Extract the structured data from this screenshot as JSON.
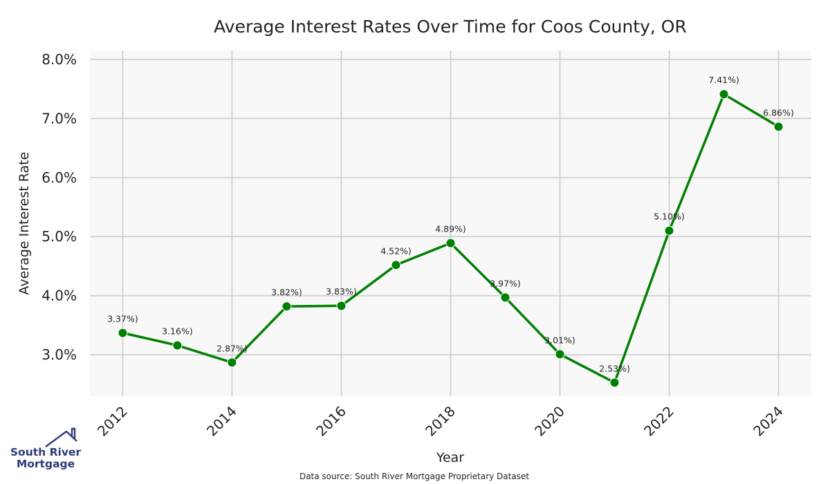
{
  "chart_data": {
    "type": "line",
    "title": "Average Interest Rates Over Time for Coos County, OR",
    "xlabel": "Year",
    "ylabel": "Average Interest Rate",
    "x": [
      2012,
      2013,
      2014,
      2015,
      2016,
      2017,
      2018,
      2019,
      2020,
      2021,
      2022,
      2023,
      2024
    ],
    "series": [
      {
        "values": [
          3.37,
          3.16,
          2.87,
          3.82,
          3.83,
          4.52,
          4.89,
          3.97,
          3.01,
          2.53,
          5.1,
          7.41,
          6.86
        ],
        "labels": [
          "3.37%)",
          "3.16%)",
          "2.87%)",
          "3.82%)",
          "3.83%)",
          "4.52%)",
          "4.89%)",
          "3.97%)",
          "3.01%)",
          "2.53%)",
          "5.10%)",
          "7.41%)",
          "6.86%)"
        ],
        "color": "#008000"
      }
    ],
    "xticks": [
      2012,
      2014,
      2016,
      2018,
      2020,
      2022,
      2024
    ],
    "xtick_labels": [
      "2012",
      "2014",
      "2016",
      "2018",
      "2020",
      "2022",
      "2024"
    ],
    "yticks": [
      3.0,
      4.0,
      5.0,
      6.0,
      7.0,
      8.0
    ],
    "ytick_labels": [
      "3.0%",
      "4.0%",
      "5.0%",
      "6.0%",
      "7.0%",
      "8.0%"
    ],
    "xlim": [
      2011.4,
      2024.6
    ],
    "ylim": [
      2.3,
      8.15
    ],
    "grid": true,
    "plot_background": "#f8f8f8",
    "grid_color": "#cccccc"
  },
  "source_note": "Data source: South River Mortgage Proprietary Dataset",
  "logo": {
    "line1": "South River",
    "line2": "Mortgage",
    "color": "#2d3a7a",
    "icon": "house-roof-icon"
  }
}
